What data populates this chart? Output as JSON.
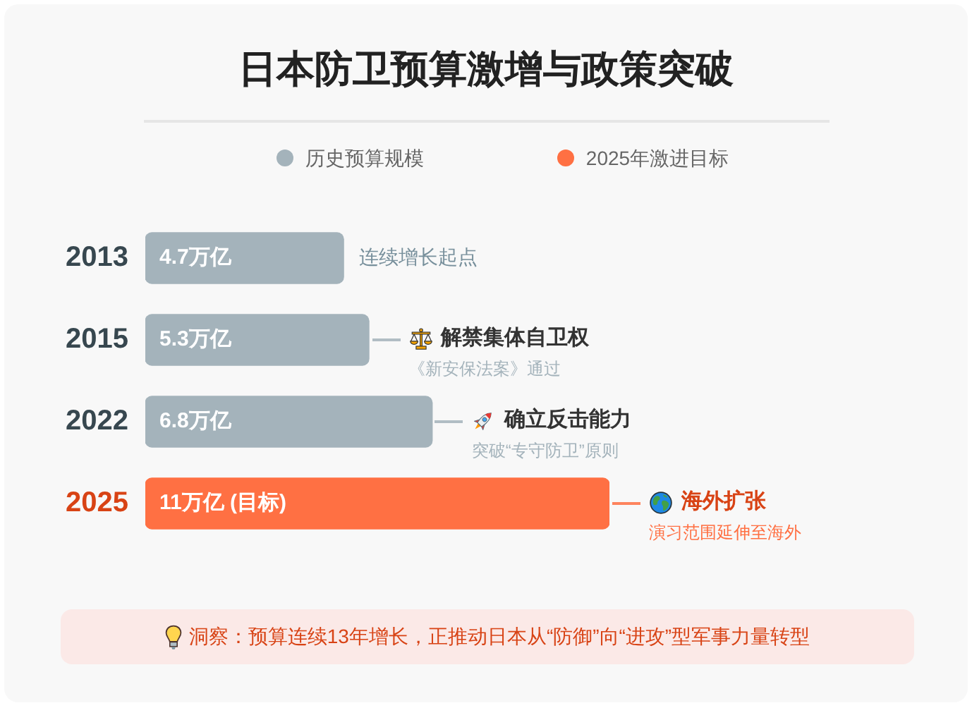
{
  "chart_data": {
    "type": "bar",
    "orientation": "horizontal",
    "title": "日本防卫预算激增与政策突破",
    "categories": [
      "2013",
      "2015",
      "2022",
      "2025"
    ],
    "series": [
      {
        "name": "历史预算规模",
        "color": "#a4b3bb",
        "values": [
          4.7,
          5.3,
          6.8,
          null
        ],
        "value_labels": [
          "4.7万亿",
          "5.3万亿",
          "6.8万亿",
          null
        ]
      },
      {
        "name": "2025年激进目标",
        "color": "#ff7043",
        "values": [
          null,
          null,
          null,
          11
        ],
        "value_labels": [
          null,
          null,
          null,
          "11万亿 (目标)"
        ]
      }
    ],
    "legend": "top",
    "tick_labels": "y",
    "annotations": [
      {
        "text": "连续增长起点",
        "x": 4.7,
        "y": "2013"
      },
      "解禁集体自卫权",
      "《新安保法案》通过",
      "确立反击能力",
      "突破“专守防卫”原则",
      "海外扩张",
      "演习范围延伸至海外",
      "洞察：预算连续13年增长，正推动日本从“防御”向“进攻”型军事力量转型"
    ]
  }
}
